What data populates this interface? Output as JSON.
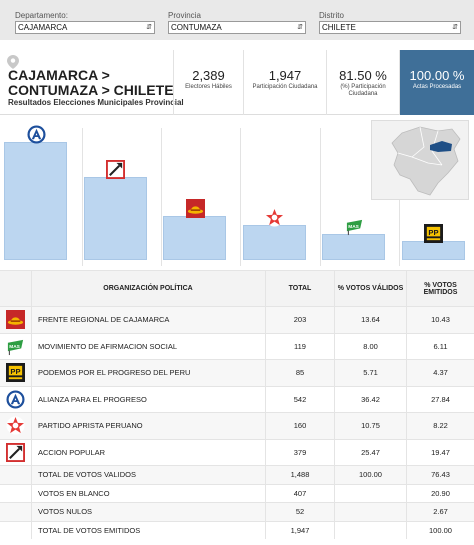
{
  "filters": [
    {
      "label": "Departamento:",
      "value": "CAJAMARCA"
    },
    {
      "label": "Provincia",
      "value": "CONTUMAZA"
    },
    {
      "label": "Distrito",
      "value": "CHILETE"
    }
  ],
  "header": {
    "title_line1": "CAJAMARCA >",
    "title_line2": "CONTUMAZA > CHILETE",
    "subtitle": "Resultados Elecciones Municipales Provincial"
  },
  "stats": [
    {
      "value": "2,389",
      "label": "Electores Hábiles"
    },
    {
      "value": "1,947",
      "label": "Participación Ciudadana"
    },
    {
      "value": "81.50 %",
      "label": "(%) Participación Ciudadana"
    },
    {
      "value": "100.00 %",
      "label": "Actas Procesadas"
    }
  ],
  "colors": {
    "accent": "#3f6f98",
    "bar": "#bcd6f0",
    "filter_bg": "#e9e9e9"
  },
  "chart_data": {
    "type": "bar",
    "categories": [
      "ALIANZA PARA EL PROGRESO",
      "ACCION POPULAR",
      "FRENTE REGIONAL DE CAJAMARCA",
      "PARTIDO APRISTA PERUANO",
      "MOVIMIENTO DE AFIRMACION SOCIAL",
      "PODEMOS POR EL PROGRESO DEL PERU"
    ],
    "values": [
      542,
      379,
      203,
      160,
      119,
      85
    ],
    "logos": [
      "app-logo",
      "ap-logo",
      "frc-logo",
      "apra-logo",
      "mas-logo",
      "podemos-logo"
    ],
    "ylim": [
      0,
      542
    ]
  },
  "table": {
    "headers": [
      "ORGANIZACIÓN POLÍTICA",
      "TOTAL",
      "% VOTOS VÁLIDOS",
      "% VOTOS EMITIDOS"
    ],
    "parties": [
      {
        "logo": "frc-logo",
        "name": "FRENTE REGIONAL DE CAJAMARCA",
        "total": "203",
        "validos": "13.64",
        "emitidos": "10.43"
      },
      {
        "logo": "mas-logo",
        "name": "MOVIMIENTO DE AFIRMACION SOCIAL",
        "total": "119",
        "validos": "8.00",
        "emitidos": "6.11"
      },
      {
        "logo": "podemos-logo",
        "name": "PODEMOS POR EL PROGRESO DEL PERU",
        "total": "85",
        "validos": "5.71",
        "emitidos": "4.37"
      },
      {
        "logo": "app-logo",
        "name": "ALIANZA PARA EL PROGRESO",
        "total": "542",
        "validos": "36.42",
        "emitidos": "27.84"
      },
      {
        "logo": "apra-logo",
        "name": "PARTIDO APRISTA PERUANO",
        "total": "160",
        "validos": "10.75",
        "emitidos": "8.22"
      },
      {
        "logo": "ap-logo",
        "name": "ACCION POPULAR",
        "total": "379",
        "validos": "25.47",
        "emitidos": "19.47"
      }
    ],
    "summary": [
      {
        "name": "TOTAL DE VOTOS VALIDOS",
        "total": "1,488",
        "validos": "100.00",
        "emitidos": "76.43"
      },
      {
        "name": "VOTOS EN BLANCO",
        "total": "407",
        "validos": "",
        "emitidos": "20.90"
      },
      {
        "name": "VOTOS NULOS",
        "total": "52",
        "validos": "",
        "emitidos": "2.67"
      },
      {
        "name": "TOTAL DE VOTOS EMITIDOS",
        "total": "1,947",
        "validos": "",
        "emitidos": "100.00"
      }
    ]
  }
}
